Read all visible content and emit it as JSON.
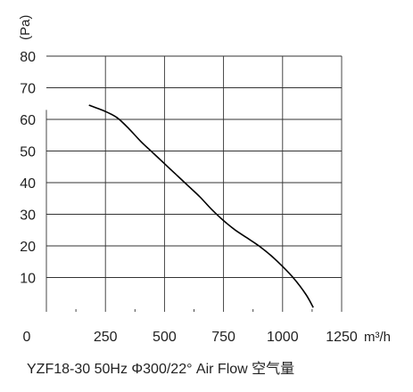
{
  "chart_data": {
    "type": "line",
    "title": "",
    "ylabel": "(Pa)",
    "xlabel": "m³/h",
    "xlim": [
      0,
      1250
    ],
    "ylim": [
      0,
      80
    ],
    "x_ticks": [
      "0",
      "250",
      "500",
      "750",
      "1000",
      "1250"
    ],
    "y_ticks": [
      "10",
      "20",
      "30",
      "40",
      "50",
      "60",
      "70",
      "80"
    ],
    "grid": true,
    "series": [
      {
        "points": [
          [
            180,
            64.5
          ],
          [
            250,
            62.5
          ],
          [
            300,
            60.5
          ],
          [
            350,
            57
          ],
          [
            400,
            53
          ],
          [
            450,
            49.5
          ],
          [
            500,
            46
          ],
          [
            550,
            42.5
          ],
          [
            600,
            39
          ],
          [
            650,
            35.5
          ],
          [
            700,
            31.5
          ],
          [
            750,
            28
          ],
          [
            800,
            25
          ],
          [
            850,
            22.5
          ],
          [
            900,
            20
          ],
          [
            950,
            17
          ],
          [
            1000,
            13.5
          ],
          [
            1050,
            9.5
          ],
          [
            1100,
            4.5
          ],
          [
            1130,
            0.5
          ]
        ],
        "color": "#000000"
      }
    ],
    "caption": "YZF18-30 50Hz  Φ300/22°   Air Flow 空气量"
  }
}
